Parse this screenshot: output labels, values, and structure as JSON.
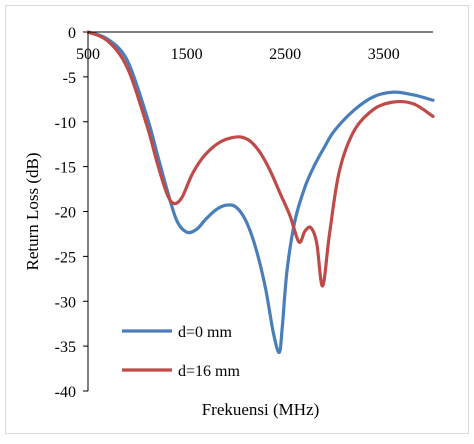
{
  "chart_data": {
    "type": "line",
    "title": "",
    "xlabel": "Frekuensi (MHz)",
    "ylabel": "Return Loss (dB)",
    "xlim": [
      500,
      4000
    ],
    "ylim": [
      -40,
      0
    ],
    "x_ticks": [
      500,
      1500,
      2500,
      3500
    ],
    "x_tick_labels": [
      "500",
      "1500",
      "2500",
      "3500"
    ],
    "y_ticks": [
      0,
      -5,
      -10,
      -15,
      -20,
      -25,
      -30,
      -35,
      -40
    ],
    "y_tick_labels": [
      "0",
      "-5",
      "-10",
      "-15",
      "-20",
      "-25",
      "-30",
      "-35",
      "-40"
    ],
    "x_axis_position": "top (at y = 0)",
    "grid": false,
    "legend_position": "bottom-left",
    "series": [
      {
        "name": "d=0 mm",
        "color": "#4a7ebb",
        "x": [
          500,
          700,
          900,
          1100,
          1200,
          1300,
          1400,
          1500,
          1600,
          1700,
          1800,
          1900,
          2000,
          2100,
          2200,
          2300,
          2380,
          2440,
          2470,
          2520,
          2600,
          2700,
          2800,
          2900,
          3000,
          3200,
          3400,
          3600,
          3800,
          4000
        ],
        "values": [
          0,
          -0.8,
          -3.2,
          -9.5,
          -13.5,
          -17.5,
          -21.0,
          -22.3,
          -22.0,
          -20.8,
          -19.8,
          -19.3,
          -19.5,
          -21.0,
          -24.0,
          -28.5,
          -33.5,
          -35.7,
          -33.0,
          -26.5,
          -21.0,
          -17.3,
          -14.8,
          -12.8,
          -11.0,
          -8.7,
          -7.2,
          -6.7,
          -7.0,
          -7.6
        ]
      },
      {
        "name": "d=16 mm",
        "color": "#be4b48",
        "x": [
          500,
          700,
          900,
          1100,
          1200,
          1300,
          1370,
          1450,
          1550,
          1650,
          1750,
          1850,
          1950,
          2050,
          2150,
          2250,
          2350,
          2450,
          2550,
          2640,
          2700,
          2760,
          2820,
          2880,
          2950,
          3050,
          3200,
          3400,
          3600,
          3800,
          4000
        ],
        "values": [
          0,
          -1.0,
          -4.0,
          -10.5,
          -14.5,
          -18.0,
          -19.1,
          -18.5,
          -16.0,
          -14.2,
          -13.0,
          -12.2,
          -11.8,
          -11.7,
          -12.2,
          -13.5,
          -15.5,
          -18.0,
          -20.5,
          -23.4,
          -22.2,
          -21.8,
          -23.5,
          -28.3,
          -22.5,
          -15.5,
          -11.0,
          -8.6,
          -7.8,
          -8.0,
          -9.4
        ]
      }
    ]
  }
}
